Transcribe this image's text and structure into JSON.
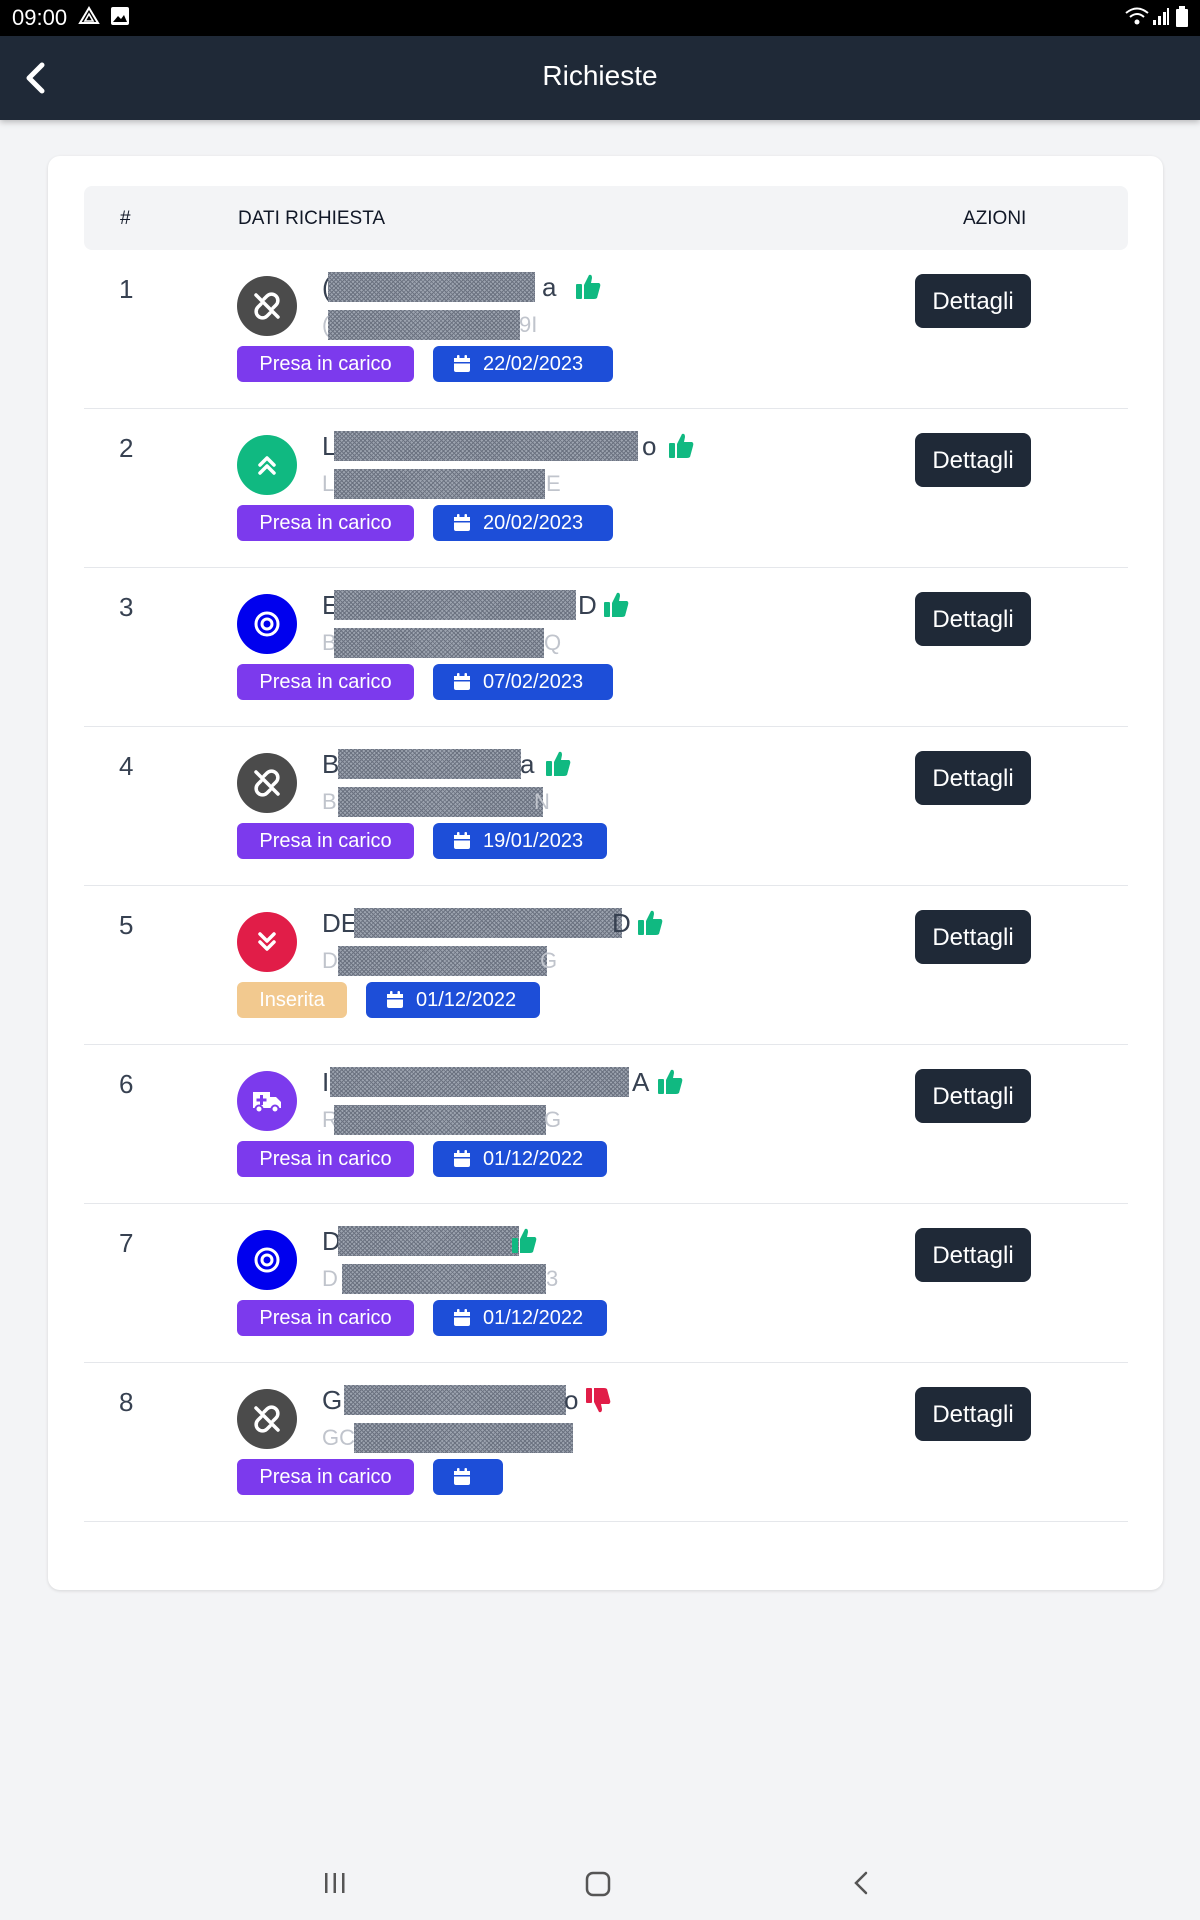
{
  "status_bar": {
    "time": "09:00"
  },
  "header": {
    "title": "Richieste"
  },
  "table": {
    "columns": {
      "num": "#",
      "data": "DATI RICHIESTA",
      "actions": "AZIONI"
    }
  },
  "colors": {
    "header_bg": "#1f2937",
    "status_presa": "#7c3aed",
    "status_inserita": "#f2c98f",
    "date_badge": "#1d4ed8",
    "thumb_up": "#10b981",
    "thumb_down": "#e11d48"
  },
  "rows": [
    {
      "num": "1",
      "name_first": "(",
      "name_last": "a",
      "sub_first": "(",
      "sub_last": "9I",
      "icon": "unlink-icon",
      "status": "Presa in carico",
      "date": "22/02/2023",
      "rating": "thumbs-up-icon",
      "action": "Dettagli"
    },
    {
      "num": "2",
      "name_first": "L",
      "name_last": "o",
      "sub_first": "L",
      "sub_last": "E",
      "icon": "chevrons-up-icon",
      "status": "Presa in carico",
      "date": "20/02/2023",
      "rating": "thumbs-up-icon",
      "action": "Dettagli"
    },
    {
      "num": "3",
      "name_first": "E",
      "name_last": "D",
      "sub_first": "B",
      "sub_last": "Q",
      "icon": "target-icon",
      "status": "Presa in carico",
      "date": "07/02/2023",
      "rating": "thumbs-up-icon",
      "action": "Dettagli"
    },
    {
      "num": "4",
      "name_first": "B",
      "name_last": "a",
      "sub_first": "B",
      "sub_last": "N",
      "icon": "unlink-icon",
      "status": "Presa in carico",
      "date": "19/01/2023",
      "rating": "thumbs-up-icon",
      "action": "Dettagli"
    },
    {
      "num": "5",
      "name_first": "DE",
      "name_last": "D",
      "sub_first": "D",
      "sub_last": "G",
      "icon": "chevrons-down-icon",
      "status": "Inserita",
      "date": "01/12/2022",
      "rating": "thumbs-up-icon",
      "action": "Dettagli"
    },
    {
      "num": "6",
      "name_first": "I",
      "name_last": "A",
      "sub_first": "R",
      "sub_last": "G",
      "icon": "ambulance-icon",
      "status": "Presa in carico",
      "date": "01/12/2022",
      "rating": "thumbs-up-icon",
      "action": "Dettagli"
    },
    {
      "num": "7",
      "name_first": "D",
      "name_last": "",
      "sub_first": "D",
      "sub_last": "3",
      "icon": "target-icon",
      "status": "Presa in carico",
      "date": "01/12/2022",
      "rating": "thumbs-up-icon",
      "action": "Dettagli"
    },
    {
      "num": "8",
      "name_first": "G",
      "name_last": "o",
      "sub_first": "GC",
      "sub_last": "",
      "icon": "unlink-icon",
      "status": "Presa in carico",
      "date": "",
      "rating": "thumbs-down-icon",
      "action": "Dettagli"
    }
  ]
}
